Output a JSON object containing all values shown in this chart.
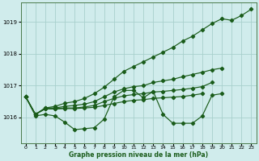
{
  "background_color": "#d0ecec",
  "grid_color": "#a8d0cc",
  "line_color": "#1a5c1a",
  "xlabel": "Graphe pression niveau de la mer (hPa)",
  "xlim": [
    -0.5,
    23.5
  ],
  "ylim": [
    1015.2,
    1019.6
  ],
  "yticks": [
    1016,
    1017,
    1018,
    1019
  ],
  "xticks": [
    0,
    1,
    2,
    3,
    4,
    5,
    6,
    7,
    8,
    9,
    10,
    11,
    12,
    13,
    14,
    15,
    16,
    17,
    18,
    19,
    20,
    21,
    22,
    23
  ],
  "series": [
    {
      "x": [
        0,
        1,
        2,
        3,
        4,
        5,
        6,
        7,
        8,
        9,
        10,
        11,
        12,
        13,
        14,
        15,
        16,
        17,
        18,
        19,
        20,
        21,
        22,
        23
      ],
      "y": [
        1016.65,
        1016.1,
        1016.3,
        1016.35,
        1016.45,
        1016.5,
        1016.6,
        1016.75,
        1016.95,
        1017.2,
        1017.45,
        1017.6,
        1017.75,
        1017.9,
        1018.05,
        1018.2,
        1018.4,
        1018.55,
        1018.75,
        1018.95,
        1019.1,
        1019.05,
        1019.2,
        1019.4
      ]
    },
    {
      "x": [
        0,
        1,
        2,
        3,
        4,
        5,
        6,
        7,
        8,
        9,
        10,
        11,
        12,
        13,
        14,
        15,
        16,
        17,
        18,
        19,
        20
      ],
      "y": [
        1016.65,
        1016.1,
        1016.3,
        1016.3,
        1016.35,
        1016.38,
        1016.42,
        1016.5,
        1016.65,
        1016.8,
        1016.9,
        1016.97,
        1017.0,
        1017.1,
        1017.15,
        1017.2,
        1017.28,
        1017.35,
        1017.42,
        1017.5,
        1017.55
      ]
    },
    {
      "x": [
        0,
        1,
        2,
        3,
        4,
        5,
        6,
        7,
        8,
        9,
        10,
        11,
        12,
        13,
        14,
        15,
        16,
        17,
        18,
        19
      ],
      "y": [
        1016.65,
        1016.1,
        1016.28,
        1016.28,
        1016.3,
        1016.3,
        1016.33,
        1016.38,
        1016.5,
        1016.6,
        1016.68,
        1016.72,
        1016.75,
        1016.8,
        1016.82,
        1016.85,
        1016.88,
        1016.92,
        1016.97,
        1017.1
      ]
    },
    {
      "x": [
        0,
        1,
        2,
        3,
        4,
        5,
        6,
        7,
        8,
        9,
        10,
        11,
        12,
        13,
        14,
        15,
        16,
        17,
        18
      ],
      "y": [
        1016.65,
        1016.1,
        1016.27,
        1016.27,
        1016.28,
        1016.28,
        1016.3,
        1016.32,
        1016.38,
        1016.44,
        1016.5,
        1016.54,
        1016.56,
        1016.6,
        1016.62,
        1016.64,
        1016.66,
        1016.7,
        1016.75
      ]
    },
    {
      "x": [
        0,
        1,
        2,
        3,
        4,
        5,
        6,
        7,
        8,
        9,
        10,
        11,
        12,
        13,
        14,
        15,
        16,
        17,
        18,
        19,
        20
      ],
      "y": [
        1016.65,
        1016.05,
        1016.1,
        1016.05,
        1015.85,
        1015.62,
        1015.65,
        1015.68,
        1015.95,
        1016.65,
        1016.85,
        1016.85,
        1016.62,
        1016.82,
        1016.1,
        1015.82,
        1015.82,
        1015.82,
        1016.05,
        1016.7,
        1016.75
      ]
    }
  ]
}
